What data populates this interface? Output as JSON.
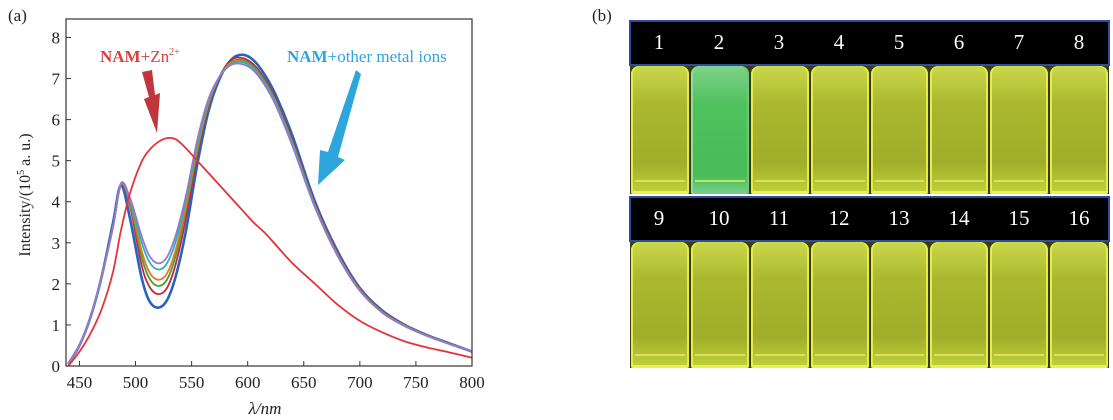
{
  "panel_a": {
    "label": "(a)",
    "annotation_zn": {
      "main": "NAM",
      "plus": "+Zn",
      "sup": "2+",
      "color": "#d9403f"
    },
    "annotation_other": {
      "main": "NAM",
      "rest": "+other metal ions",
      "color": "#2ea6dd"
    }
  },
  "panel_b": {
    "label": "(b)",
    "row1": [
      "1",
      "2",
      "3",
      "4",
      "5",
      "6",
      "7",
      "8"
    ],
    "row2": [
      "9",
      "10",
      "11",
      "12",
      "13",
      "14",
      "15",
      "16"
    ],
    "highlight_vial": "2",
    "vial_color": "#b3c234",
    "highlight_color": "#4fc25e"
  },
  "chart_data": {
    "type": "line",
    "title": "",
    "xlabel": "λ/nm",
    "ylabel_main": "Intensity/(10",
    "ylabel_sup": "5",
    "ylabel_end": " a. u.)",
    "xlim": [
      438,
      800
    ],
    "ylim": [
      0,
      8.45
    ],
    "xticks": [
      "450",
      "500",
      "550",
      "600",
      "650",
      "700",
      "750",
      "800"
    ],
    "yticks": [
      "0",
      "1",
      "2",
      "3",
      "4",
      "5",
      "6",
      "7",
      "8"
    ],
    "grid": false,
    "x": [
      440,
      450,
      460,
      470,
      480,
      487,
      495,
      505,
      512,
      520,
      528,
      536,
      545,
      555,
      565,
      575,
      585,
      595,
      605,
      615,
      625,
      640,
      660,
      680,
      700,
      720,
      740,
      760,
      780,
      800
    ],
    "series": [
      {
        "name": "NAM+other metal ions (blue)",
        "color": "#2a62c0",
        "values": [
          0.05,
          0.5,
          1.2,
          2.2,
          3.5,
          4.4,
          3.6,
          2.2,
          1.6,
          1.42,
          1.6,
          2.2,
          3.3,
          4.9,
          6.2,
          7.0,
          7.45,
          7.58,
          7.45,
          7.1,
          6.6,
          5.6,
          4.0,
          2.8,
          1.9,
          1.35,
          1.0,
          0.75,
          0.55,
          0.35
        ]
      },
      {
        "name": "NAM+other metal ions (dark red)",
        "color": "#c2273a",
        "values": [
          0.05,
          0.5,
          1.2,
          2.2,
          3.4,
          4.4,
          3.9,
          2.5,
          1.95,
          1.75,
          1.9,
          2.5,
          3.6,
          5.1,
          6.3,
          7.05,
          7.45,
          7.5,
          7.35,
          7.0,
          6.5,
          5.5,
          3.95,
          2.75,
          1.88,
          1.33,
          1.0,
          0.75,
          0.55,
          0.35
        ]
      },
      {
        "name": "NAM+other metal ions (green)",
        "color": "#4f9a3a",
        "values": [
          0.05,
          0.5,
          1.2,
          2.2,
          3.4,
          4.42,
          3.95,
          2.7,
          2.15,
          1.95,
          2.1,
          2.7,
          3.8,
          5.2,
          6.35,
          7.05,
          7.4,
          7.45,
          7.3,
          6.95,
          6.45,
          5.45,
          3.92,
          2.73,
          1.86,
          1.32,
          0.99,
          0.74,
          0.54,
          0.35
        ]
      },
      {
        "name": "NAM+other metal ions (orange)",
        "color": "#e07a20",
        "values": [
          0.05,
          0.5,
          1.2,
          2.2,
          3.4,
          4.42,
          4.0,
          2.85,
          2.3,
          2.1,
          2.25,
          2.85,
          3.9,
          5.3,
          6.4,
          7.05,
          7.38,
          7.42,
          7.27,
          6.92,
          6.42,
          5.42,
          3.9,
          2.72,
          1.85,
          1.31,
          0.98,
          0.74,
          0.54,
          0.35
        ]
      },
      {
        "name": "NAM+other metal ions (cyan)",
        "color": "#22b3c6",
        "values": [
          0.05,
          0.5,
          1.2,
          2.2,
          3.4,
          4.43,
          4.05,
          3.05,
          2.55,
          2.35,
          2.5,
          3.05,
          4.05,
          5.4,
          6.45,
          7.05,
          7.35,
          7.4,
          7.25,
          6.9,
          6.4,
          5.4,
          3.88,
          2.7,
          1.84,
          1.3,
          0.98,
          0.74,
          0.54,
          0.35
        ]
      },
      {
        "name": "NAM+other metal ions (purple)",
        "color": "#9a77c8",
        "values": [
          0.05,
          0.5,
          1.2,
          2.2,
          3.4,
          4.45,
          4.1,
          3.2,
          2.7,
          2.5,
          2.65,
          3.2,
          4.15,
          5.5,
          6.5,
          7.05,
          7.33,
          7.35,
          7.2,
          6.85,
          6.35,
          5.35,
          3.86,
          2.69,
          1.83,
          1.3,
          0.97,
          0.73,
          0.53,
          0.35
        ]
      },
      {
        "name": "NAM+Zn2+",
        "color": "#e8323a",
        "values": [
          0.0,
          0.35,
          0.8,
          1.4,
          2.3,
          3.3,
          4.2,
          4.95,
          5.25,
          5.45,
          5.55,
          5.52,
          5.3,
          5.0,
          4.7,
          4.4,
          4.1,
          3.8,
          3.5,
          3.25,
          2.95,
          2.5,
          2.0,
          1.5,
          1.1,
          0.82,
          0.6,
          0.45,
          0.33,
          0.2
        ]
      }
    ]
  }
}
